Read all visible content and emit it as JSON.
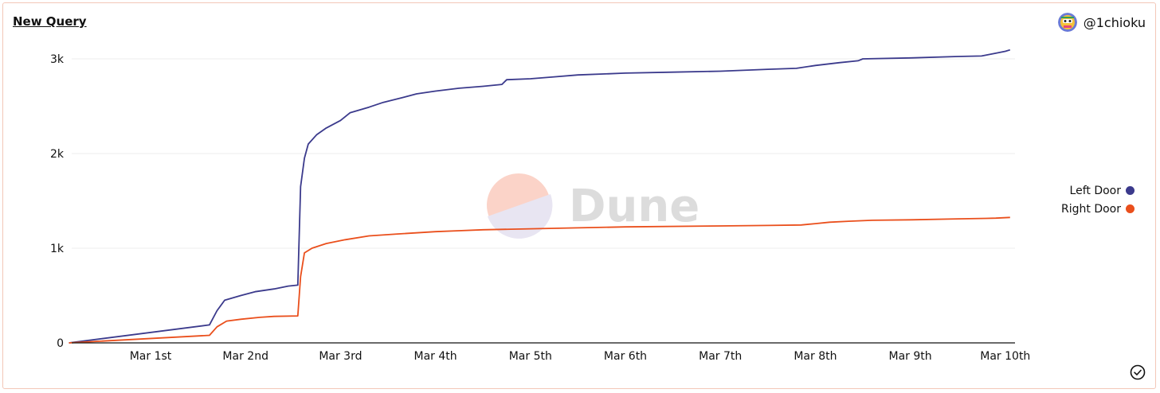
{
  "header": {
    "title": "New Query",
    "user_handle": "@1chioku"
  },
  "watermark": {
    "text": "Dune"
  },
  "colors": {
    "left_door": "#3b3a8c",
    "right_door": "#ea4f1c",
    "grid": "#eeeeee",
    "axis": "#111111"
  },
  "icons": {
    "avatar": "avatar-icon",
    "check": "check-circle-icon"
  },
  "chart_data": {
    "type": "line",
    "title": "",
    "xlabel": "",
    "ylabel": "",
    "x_tick_labels": [
      "Mar 1st",
      "Mar 2nd",
      "Mar 3rd",
      "Mar 4th",
      "Mar 5th",
      "Mar 6th",
      "Mar 7th",
      "Mar 8th",
      "Mar 9th",
      "Mar 10th"
    ],
    "y_tick_labels": [
      "0",
      "1k",
      "2k",
      "3k"
    ],
    "ylim": [
      0,
      3000
    ],
    "xlim": [
      -0.86,
      9.05
    ],
    "x_unit": "days after Mar 1st",
    "legend_position": "right",
    "grid": true,
    "series": [
      {
        "name": "Left Door",
        "color": "#3b3a8c",
        "points": [
          [
            -0.86,
            0
          ],
          [
            0.62,
            190
          ],
          [
            0.7,
            340
          ],
          [
            0.78,
            450
          ],
          [
            0.95,
            500
          ],
          [
            1.1,
            540
          ],
          [
            1.3,
            570
          ],
          [
            1.45,
            600
          ],
          [
            1.55,
            610
          ],
          [
            1.58,
            1650
          ],
          [
            1.62,
            1950
          ],
          [
            1.66,
            2100
          ],
          [
            1.75,
            2200
          ],
          [
            1.85,
            2270
          ],
          [
            2.0,
            2350
          ],
          [
            2.1,
            2430
          ],
          [
            2.3,
            2490
          ],
          [
            2.45,
            2540
          ],
          [
            2.65,
            2590
          ],
          [
            2.8,
            2630
          ],
          [
            3.0,
            2660
          ],
          [
            3.25,
            2690
          ],
          [
            3.5,
            2710
          ],
          [
            3.7,
            2730
          ],
          [
            3.75,
            2780
          ],
          [
            4.0,
            2790
          ],
          [
            4.25,
            2810
          ],
          [
            4.5,
            2830
          ],
          [
            5.0,
            2850
          ],
          [
            5.5,
            2860
          ],
          [
            6.0,
            2870
          ],
          [
            6.5,
            2890
          ],
          [
            6.8,
            2900
          ],
          [
            7.0,
            2930
          ],
          [
            7.25,
            2960
          ],
          [
            7.45,
            2980
          ],
          [
            7.5,
            3000
          ],
          [
            8.0,
            3010
          ],
          [
            8.5,
            3025
          ],
          [
            8.75,
            3030
          ],
          [
            8.9,
            3060
          ],
          [
            9.0,
            3080
          ],
          [
            9.05,
            3095
          ]
        ]
      },
      {
        "name": "Right Door",
        "color": "#ea4f1c",
        "points": [
          [
            -0.86,
            0
          ],
          [
            0.62,
            80
          ],
          [
            0.7,
            170
          ],
          [
            0.8,
            230
          ],
          [
            0.95,
            250
          ],
          [
            1.15,
            270
          ],
          [
            1.3,
            280
          ],
          [
            1.55,
            285
          ],
          [
            1.58,
            700
          ],
          [
            1.62,
            950
          ],
          [
            1.7,
            1000
          ],
          [
            1.85,
            1050
          ],
          [
            2.05,
            1090
          ],
          [
            2.3,
            1130
          ],
          [
            2.6,
            1150
          ],
          [
            3.0,
            1175
          ],
          [
            3.25,
            1185
          ],
          [
            3.5,
            1195
          ],
          [
            4.0,
            1205
          ],
          [
            4.5,
            1215
          ],
          [
            5.0,
            1225
          ],
          [
            6.0,
            1235
          ],
          [
            6.5,
            1240
          ],
          [
            6.85,
            1245
          ],
          [
            7.0,
            1260
          ],
          [
            7.15,
            1275
          ],
          [
            7.35,
            1285
          ],
          [
            7.6,
            1295
          ],
          [
            8.0,
            1300
          ],
          [
            8.5,
            1310
          ],
          [
            8.8,
            1315
          ],
          [
            8.9,
            1318
          ],
          [
            9.05,
            1325
          ]
        ]
      }
    ]
  }
}
